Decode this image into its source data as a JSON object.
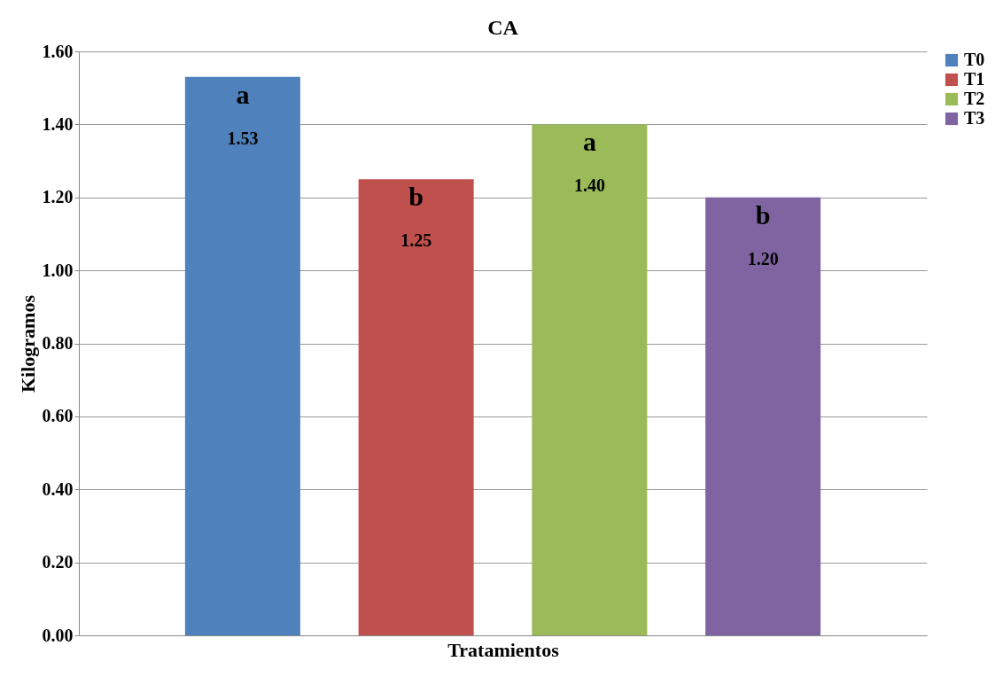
{
  "chart_data": {
    "type": "bar",
    "title": "CA",
    "xlabel": "Tratamientos",
    "ylabel": "Kilogramos",
    "categories": [
      null
    ],
    "series": [
      {
        "name": "T0",
        "color": "#4f81bd",
        "values": [
          1.53
        ],
        "value_labels": [
          "1.53"
        ]
      },
      {
        "name": "T1",
        "color": "#c0504d",
        "values": [
          1.25
        ],
        "value_labels": [
          "1.25"
        ]
      },
      {
        "name": "T2",
        "color": "#9bbb59",
        "values": [
          1.4
        ],
        "value_labels": [
          "1.40"
        ]
      },
      {
        "name": "T3",
        "color": "#8064a2",
        "values": [
          1.2
        ],
        "value_labels": [
          "1.20"
        ]
      }
    ],
    "ylim": [
      0,
      1.6
    ],
    "yticks": [
      {
        "value": 0,
        "label": "0.00"
      },
      {
        "value": 0.2,
        "label": "0.20"
      },
      {
        "value": 0.4,
        "label": "0.40"
      },
      {
        "value": 0.6,
        "label": "0.60"
      },
      {
        "value": 0.8,
        "label": "0.80"
      },
      {
        "value": 1.0,
        "label": "1.00"
      },
      {
        "value": 1.2,
        "label": "1.20"
      },
      {
        "value": 1.4,
        "label": "1.40"
      },
      {
        "value": 1.6,
        "label": "1.60"
      }
    ],
    "annotations": [
      "a",
      "b",
      "a",
      "b"
    ],
    "grid": "y",
    "legend": "right"
  }
}
